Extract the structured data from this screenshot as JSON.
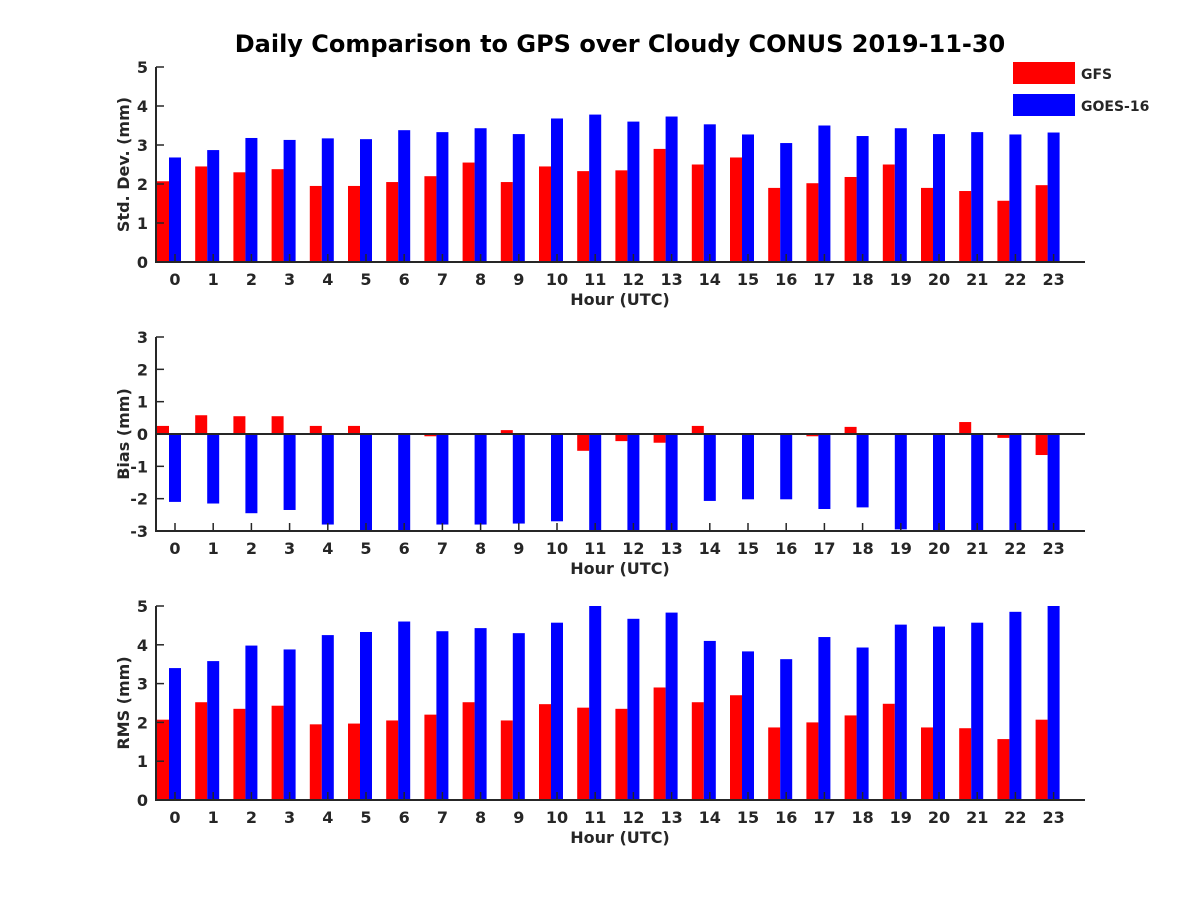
{
  "title": "Daily Comparison to GPS over Cloudy CONUS 2019-11-30",
  "colors": {
    "GFS": "#ff0000",
    "GOES-16": "#0000ff"
  },
  "legend": {
    "placement": "top-right",
    "items": [
      "GFS",
      "GOES-16"
    ]
  },
  "chart_data": [
    {
      "type": "bar",
      "categories": [
        "0",
        "1",
        "2",
        "3",
        "4",
        "5",
        "6",
        "7",
        "8",
        "9",
        "10",
        "11",
        "12",
        "13",
        "14",
        "15",
        "16",
        "17",
        "18",
        "19",
        "20",
        "21",
        "22",
        "23"
      ],
      "xlabel": "Hour (UTC)",
      "ylabel": "Std. Dev. (mm)",
      "ylim": [
        0,
        5
      ],
      "yticks": [
        0,
        1,
        2,
        3,
        4,
        5
      ],
      "series": [
        {
          "name": "GFS",
          "values": [
            2.07,
            2.45,
            2.3,
            2.38,
            1.95,
            1.95,
            2.05,
            2.2,
            2.55,
            2.05,
            2.45,
            2.33,
            2.35,
            2.9,
            2.5,
            2.68,
            1.9,
            2.02,
            2.18,
            2.5,
            1.9,
            1.82,
            1.57,
            1.97
          ]
        },
        {
          "name": "GOES-16",
          "values": [
            2.68,
            2.87,
            3.18,
            3.13,
            3.17,
            3.15,
            3.38,
            3.33,
            3.43,
            3.28,
            3.68,
            3.78,
            3.6,
            3.73,
            3.53,
            3.27,
            3.05,
            3.5,
            3.23,
            3.43,
            3.28,
            3.33,
            3.27,
            3.32
          ]
        }
      ]
    },
    {
      "type": "bar",
      "categories": [
        "0",
        "1",
        "2",
        "3",
        "4",
        "5",
        "6",
        "7",
        "8",
        "9",
        "10",
        "11",
        "12",
        "13",
        "14",
        "15",
        "16",
        "17",
        "18",
        "19",
        "20",
        "21",
        "22",
        "23"
      ],
      "xlabel": "Hour (UTC)",
      "ylabel": "Bias (mm)",
      "ylim": [
        -3,
        3
      ],
      "yticks": [
        -3,
        -2,
        -1,
        0,
        1,
        2,
        3
      ],
      "series": [
        {
          "name": "GFS",
          "values": [
            0.25,
            0.58,
            0.55,
            0.55,
            0.25,
            0.25,
            0.0,
            -0.07,
            0.02,
            0.12,
            0.0,
            -0.52,
            -0.22,
            -0.27,
            0.25,
            0.0,
            0.0,
            -0.07,
            0.22,
            0.0,
            0.02,
            0.37,
            -0.12,
            -0.65
          ]
        },
        {
          "name": "GOES-16",
          "values": [
            -2.1,
            -2.15,
            -2.45,
            -2.35,
            -2.8,
            -3.0,
            -3.0,
            -2.8,
            -2.8,
            -2.77,
            -2.7,
            -3.0,
            -2.98,
            -3.0,
            -2.07,
            -2.02,
            -2.02,
            -2.32,
            -2.27,
            -2.95,
            -3.0,
            -3.0,
            -3.0,
            -3.0
          ]
        }
      ]
    },
    {
      "type": "bar",
      "categories": [
        "0",
        "1",
        "2",
        "3",
        "4",
        "5",
        "6",
        "7",
        "8",
        "9",
        "10",
        "11",
        "12",
        "13",
        "14",
        "15",
        "16",
        "17",
        "18",
        "19",
        "20",
        "21",
        "22",
        "23"
      ],
      "xlabel": "Hour (UTC)",
      "ylabel": "RMS (mm)",
      "ylim": [
        0,
        5
      ],
      "yticks": [
        0,
        1,
        2,
        3,
        4,
        5
      ],
      "series": [
        {
          "name": "GFS",
          "values": [
            2.07,
            2.52,
            2.35,
            2.43,
            1.95,
            1.97,
            2.05,
            2.2,
            2.52,
            2.05,
            2.47,
            2.38,
            2.35,
            2.9,
            2.52,
            2.7,
            1.87,
            2.0,
            2.18,
            2.48,
            1.87,
            1.85,
            1.57,
            2.07
          ]
        },
        {
          "name": "GOES-16",
          "values": [
            3.4,
            3.58,
            3.98,
            3.88,
            4.25,
            4.33,
            4.6,
            4.35,
            4.43,
            4.3,
            4.57,
            5.0,
            4.67,
            4.83,
            4.1,
            3.83,
            3.63,
            4.2,
            3.93,
            4.52,
            4.47,
            4.57,
            4.85,
            5.0
          ]
        }
      ]
    }
  ]
}
